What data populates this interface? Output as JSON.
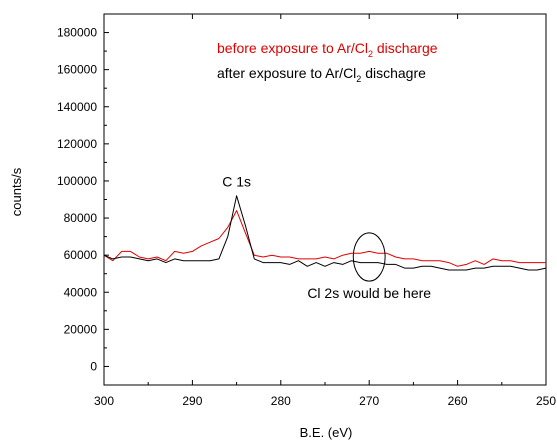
{
  "chart_data": {
    "type": "line",
    "xlabel": "B.E. (eV)",
    "ylabel": "counts/s",
    "xlim": [
      300,
      250
    ],
    "ylim": [
      -10000,
      190000
    ],
    "x_ticks": [
      300,
      290,
      280,
      270,
      260,
      250
    ],
    "y_ticks": [
      0,
      20000,
      40000,
      60000,
      80000,
      100000,
      120000,
      140000,
      160000,
      180000
    ],
    "grid": false,
    "legend_placement": "top-right",
    "series": [
      {
        "name": "before exposure to Ar/Cl2 discharge",
        "legend": {
          "prefix": "before exposure to Ar/Cl",
          "sub": "2",
          "suffix": " discharge"
        },
        "color": "#e00000",
        "points": [
          [
            300,
            60000
          ],
          [
            299,
            57000
          ],
          [
            298,
            62000
          ],
          [
            297,
            62000
          ],
          [
            296,
            59000
          ],
          [
            295,
            58000
          ],
          [
            294,
            59000
          ],
          [
            293,
            57000
          ],
          [
            292,
            62000
          ],
          [
            291,
            61000
          ],
          [
            290,
            62000
          ],
          [
            289,
            65000
          ],
          [
            288,
            67000
          ],
          [
            287,
            69000
          ],
          [
            286,
            75000
          ],
          [
            285,
            84000
          ],
          [
            284,
            72000
          ],
          [
            283,
            60000
          ],
          [
            282,
            59000
          ],
          [
            281,
            60000
          ],
          [
            280,
            59000
          ],
          [
            279,
            59000
          ],
          [
            278,
            58000
          ],
          [
            277,
            58000
          ],
          [
            276,
            58000
          ],
          [
            275,
            59000
          ],
          [
            274,
            58000
          ],
          [
            273,
            60000
          ],
          [
            272,
            61000
          ],
          [
            271,
            61000
          ],
          [
            270,
            62000
          ],
          [
            269,
            61000
          ],
          [
            268,
            61000
          ],
          [
            267,
            59000
          ],
          [
            266,
            58000
          ],
          [
            265,
            58000
          ],
          [
            264,
            57000
          ],
          [
            263,
            57000
          ],
          [
            262,
            57000
          ],
          [
            261,
            56000
          ],
          [
            260,
            54000
          ],
          [
            259,
            55000
          ],
          [
            258,
            57000
          ],
          [
            257,
            55000
          ],
          [
            256,
            58000
          ],
          [
            255,
            57000
          ],
          [
            254,
            57000
          ],
          [
            253,
            56000
          ],
          [
            252,
            56000
          ],
          [
            251,
            56000
          ],
          [
            250,
            56000
          ]
        ]
      },
      {
        "name": "after exposure to Ar/Cl2 dischagre",
        "legend": {
          "prefix": "after exposure to Ar/Cl",
          "sub": "2",
          "suffix": " dischagre"
        },
        "color": "#000000",
        "points": [
          [
            300,
            60000
          ],
          [
            299,
            58000
          ],
          [
            298,
            59000
          ],
          [
            297,
            59000
          ],
          [
            296,
            58000
          ],
          [
            295,
            57000
          ],
          [
            294,
            58000
          ],
          [
            293,
            56000
          ],
          [
            292,
            58000
          ],
          [
            291,
            57000
          ],
          [
            290,
            57000
          ],
          [
            289,
            57000
          ],
          [
            288,
            57000
          ],
          [
            287,
            58000
          ],
          [
            286,
            70000
          ],
          [
            285,
            92000
          ],
          [
            284,
            76000
          ],
          [
            283,
            58000
          ],
          [
            282,
            56000
          ],
          [
            281,
            56000
          ],
          [
            280,
            56000
          ],
          [
            279,
            55000
          ],
          [
            278,
            57000
          ],
          [
            277,
            54000
          ],
          [
            276,
            56000
          ],
          [
            275,
            54000
          ],
          [
            274,
            56000
          ],
          [
            273,
            55000
          ],
          [
            272,
            57000
          ],
          [
            271,
            56000
          ],
          [
            270,
            56000
          ],
          [
            269,
            56000
          ],
          [
            268,
            55000
          ],
          [
            267,
            55000
          ],
          [
            266,
            53000
          ],
          [
            265,
            53000
          ],
          [
            264,
            54000
          ],
          [
            263,
            54000
          ],
          [
            262,
            53000
          ],
          [
            261,
            52000
          ],
          [
            260,
            52000
          ],
          [
            259,
            52000
          ],
          [
            258,
            53000
          ],
          [
            257,
            53000
          ],
          [
            256,
            54000
          ],
          [
            255,
            54000
          ],
          [
            254,
            54000
          ],
          [
            253,
            53000
          ],
          [
            252,
            52000
          ],
          [
            251,
            52000
          ],
          [
            250,
            53000
          ]
        ]
      }
    ],
    "annotations": [
      {
        "id": "c1s",
        "text": "C 1s",
        "x": 285,
        "y": 97000
      },
      {
        "id": "cl2s",
        "text": "Cl 2s would be here",
        "x": 270,
        "y": 37000
      }
    ],
    "highlight_ellipse": {
      "center_x": 270,
      "center_y": 59000,
      "half_width_ev": 1.8,
      "half_height_counts": 13000
    }
  }
}
